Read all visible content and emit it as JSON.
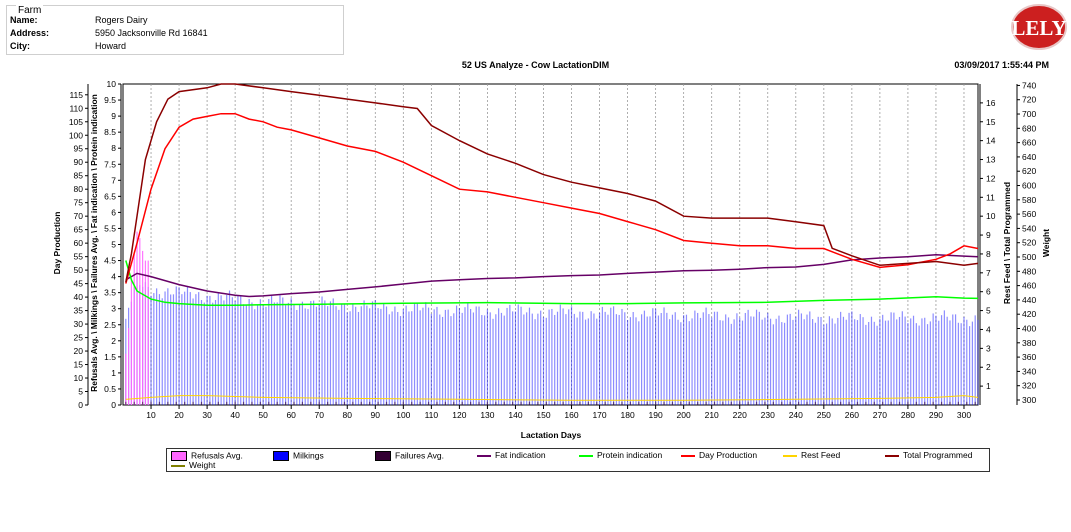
{
  "farm": {
    "legend": "Farm",
    "name_label": "Name:",
    "name": "Rogers Dairy",
    "address_label": "Address:",
    "address": "5950 Jacksonville Rd 16841",
    "city_label": "City:",
    "city": "Howard"
  },
  "logo": {
    "text": "LELY",
    "color": "#cc1f1f"
  },
  "report": {
    "title": "52 US Analyze - Cow LactationDIM",
    "timestamp": "03/09/2017 1:55:44 PM"
  },
  "chart_data": {
    "type": "line",
    "title": "52 US Analyze - Cow LactationDIM",
    "xlabel": "Lactation Days",
    "xlim": [
      0,
      305
    ],
    "x_ticks": [
      10,
      20,
      30,
      40,
      50,
      60,
      70,
      80,
      90,
      100,
      110,
      120,
      130,
      140,
      150,
      160,
      170,
      180,
      190,
      200,
      210,
      220,
      230,
      240,
      250,
      260,
      270,
      280,
      290,
      300
    ],
    "axes": {
      "day_production": {
        "label": "Day Production",
        "lim": [
          0,
          119
        ],
        "ticks": [
          0,
          5,
          10,
          15,
          20,
          25,
          30,
          35,
          40,
          45,
          50,
          55,
          60,
          65,
          70,
          75,
          80,
          85,
          90,
          95,
          100,
          105,
          110,
          115
        ]
      },
      "indicators": {
        "label": "Refusals Avg. \\ Milkings \\ Failures Avg. \\ Fat indication \\ Protein indication",
        "lim": [
          0,
          10
        ],
        "ticks": [
          "0",
          "0.5",
          "1",
          "1.5",
          "2",
          "2.5",
          "3",
          "3.5",
          "4",
          "4.5",
          "5",
          "5.5",
          "6",
          "6.5",
          "7",
          "7.5",
          "8",
          "8.5",
          "9",
          "9.5",
          "10"
        ]
      },
      "feed": {
        "label": "Rest Feed \\ Total Programmed",
        "lim": [
          0,
          17
        ],
        "ticks": [
          1,
          2,
          3,
          4,
          5,
          6,
          7,
          8,
          9,
          10,
          11,
          12,
          13,
          14,
          15,
          16
        ]
      },
      "weight": {
        "label": "Weight",
        "lim": [
          293,
          742
        ],
        "ticks": [
          300,
          320,
          340,
          360,
          380,
          400,
          420,
          440,
          460,
          480,
          500,
          520,
          540,
          560,
          580,
          600,
          620,
          640,
          660,
          680,
          700,
          720,
          740
        ]
      }
    },
    "series": [
      {
        "name": "Refusals Avg.",
        "kind": "bar",
        "axis": "indicators",
        "color": "#ff66ff",
        "points": [
          [
            1,
            1.6
          ],
          [
            2,
            2.4
          ],
          [
            3,
            3.9
          ],
          [
            4,
            4.7
          ],
          [
            5,
            5.4
          ],
          [
            6,
            5.2
          ],
          [
            7,
            4.8
          ],
          [
            8,
            4.5
          ],
          [
            9,
            4.5
          ]
        ]
      },
      {
        "name": "Milkings",
        "kind": "bar",
        "axis": "indicators",
        "color": "#0000ff",
        "points": [
          [
            1,
            2.5
          ],
          [
            2,
            3.0
          ],
          [
            5,
            3.8
          ],
          [
            10,
            3.6
          ],
          [
            20,
            3.5
          ],
          [
            30,
            3.4
          ],
          [
            40,
            3.3
          ],
          [
            50,
            3.2
          ],
          [
            60,
            3.2
          ],
          [
            80,
            3.1
          ],
          [
            100,
            3.0
          ],
          [
            120,
            2.95
          ],
          [
            150,
            2.9
          ],
          [
            180,
            2.85
          ],
          [
            200,
            2.8
          ],
          [
            230,
            2.75
          ],
          [
            260,
            2.7
          ],
          [
            280,
            2.7
          ],
          [
            305,
            2.7
          ]
        ]
      },
      {
        "name": "Failures Avg.",
        "kind": "bar",
        "axis": "indicators",
        "color": "#330033",
        "points": [
          [
            1,
            0.1
          ],
          [
            305,
            0.1
          ]
        ]
      },
      {
        "name": "Fat indication",
        "kind": "line",
        "axis": "indicators",
        "color": "#660066",
        "points": [
          [
            1,
            3.9
          ],
          [
            5,
            4.1
          ],
          [
            10,
            4.0
          ],
          [
            20,
            3.75
          ],
          [
            30,
            3.55
          ],
          [
            40,
            3.42
          ],
          [
            45,
            3.38
          ],
          [
            50,
            3.4
          ],
          [
            60,
            3.47
          ],
          [
            70,
            3.52
          ],
          [
            80,
            3.6
          ],
          [
            90,
            3.68
          ],
          [
            100,
            3.77
          ],
          [
            110,
            3.86
          ],
          [
            120,
            3.9
          ],
          [
            130,
            3.94
          ],
          [
            140,
            3.96
          ],
          [
            150,
            4.0
          ],
          [
            160,
            4.03
          ],
          [
            170,
            4.05
          ],
          [
            180,
            4.1
          ],
          [
            190,
            4.14
          ],
          [
            200,
            4.18
          ],
          [
            210,
            4.2
          ],
          [
            220,
            4.23
          ],
          [
            230,
            4.28
          ],
          [
            240,
            4.3
          ],
          [
            250,
            4.38
          ],
          [
            260,
            4.52
          ],
          [
            270,
            4.58
          ],
          [
            280,
            4.62
          ],
          [
            290,
            4.68
          ],
          [
            300,
            4.64
          ],
          [
            305,
            4.62
          ]
        ]
      },
      {
        "name": "Protein indication",
        "kind": "line",
        "axis": "indicators",
        "color": "#00ff00",
        "points": [
          [
            1,
            4.5
          ],
          [
            3,
            3.9
          ],
          [
            5,
            3.55
          ],
          [
            10,
            3.3
          ],
          [
            15,
            3.2
          ],
          [
            20,
            3.16
          ],
          [
            30,
            3.11
          ],
          [
            40,
            3.11
          ],
          [
            50,
            3.12
          ],
          [
            70,
            3.14
          ],
          [
            100,
            3.17
          ],
          [
            130,
            3.19
          ],
          [
            160,
            3.16
          ],
          [
            180,
            3.16
          ],
          [
            200,
            3.18
          ],
          [
            230,
            3.2
          ],
          [
            250,
            3.26
          ],
          [
            270,
            3.3
          ],
          [
            290,
            3.37
          ],
          [
            300,
            3.33
          ],
          [
            305,
            3.32
          ]
        ]
      },
      {
        "name": "Day Production",
        "kind": "line",
        "axis": "day_production",
        "color": "#ff0000",
        "points": [
          [
            1,
            45
          ],
          [
            5,
            60
          ],
          [
            10,
            80
          ],
          [
            15,
            95
          ],
          [
            20,
            103
          ],
          [
            25,
            106
          ],
          [
            30,
            107
          ],
          [
            35,
            108
          ],
          [
            40,
            108
          ],
          [
            45,
            106
          ],
          [
            50,
            105
          ],
          [
            55,
            103
          ],
          [
            60,
            102
          ],
          [
            70,
            99
          ],
          [
            80,
            96
          ],
          [
            90,
            94
          ],
          [
            100,
            90
          ],
          [
            110,
            85
          ],
          [
            120,
            80
          ],
          [
            130,
            79
          ],
          [
            140,
            77
          ],
          [
            150,
            75
          ],
          [
            160,
            73
          ],
          [
            170,
            71
          ],
          [
            180,
            68
          ],
          [
            190,
            65
          ],
          [
            200,
            61
          ],
          [
            210,
            60
          ],
          [
            220,
            59
          ],
          [
            230,
            59
          ],
          [
            240,
            58
          ],
          [
            250,
            58
          ],
          [
            255,
            56
          ],
          [
            260,
            54
          ],
          [
            270,
            51
          ],
          [
            280,
            52
          ],
          [
            290,
            54
          ],
          [
            295,
            56
          ],
          [
            300,
            59
          ],
          [
            305,
            58
          ]
        ]
      },
      {
        "name": "Rest Feed",
        "kind": "line",
        "axis": "feed",
        "color": "#ffd400",
        "points": [
          [
            1,
            0.3
          ],
          [
            10,
            0.4
          ],
          [
            20,
            0.5
          ],
          [
            30,
            0.5
          ],
          [
            50,
            0.4
          ],
          [
            80,
            0.35
          ],
          [
            120,
            0.3
          ],
          [
            160,
            0.25
          ],
          [
            200,
            0.25
          ],
          [
            240,
            0.3
          ],
          [
            270,
            0.35
          ],
          [
            290,
            0.4
          ],
          [
            300,
            0.5
          ],
          [
            305,
            0.4
          ]
        ]
      },
      {
        "name": "Total Programmed",
        "kind": "line",
        "axis": "feed",
        "color": "#8b0000",
        "points": [
          [
            1,
            6.5
          ],
          [
            3,
            8
          ],
          [
            5,
            10
          ],
          [
            8,
            13
          ],
          [
            12,
            15
          ],
          [
            16,
            16.2
          ],
          [
            20,
            16.6
          ],
          [
            30,
            16.8
          ],
          [
            35,
            17
          ],
          [
            40,
            17
          ],
          [
            50,
            16.8
          ],
          [
            60,
            16.6
          ],
          [
            70,
            16.4
          ],
          [
            80,
            16.2
          ],
          [
            90,
            16.0
          ],
          [
            100,
            15.8
          ],
          [
            105,
            15.7
          ],
          [
            110,
            14.8
          ],
          [
            120,
            14.0
          ],
          [
            130,
            13.3
          ],
          [
            140,
            12.8
          ],
          [
            150,
            12.2
          ],
          [
            160,
            11.8
          ],
          [
            170,
            11.5
          ],
          [
            180,
            11.2
          ],
          [
            190,
            10.8
          ],
          [
            200,
            10.0
          ],
          [
            210,
            9.9
          ],
          [
            220,
            9.9
          ],
          [
            230,
            9.9
          ],
          [
            240,
            9.7
          ],
          [
            250,
            9.5
          ],
          [
            253,
            8.3
          ],
          [
            260,
            7.9
          ],
          [
            270,
            7.4
          ],
          [
            280,
            7.5
          ],
          [
            290,
            7.6
          ],
          [
            300,
            7.4
          ],
          [
            305,
            7.5
          ]
        ]
      },
      {
        "name": "Weight",
        "kind": "line",
        "axis": "weight",
        "color": "#808000",
        "points": []
      }
    ],
    "legend": [
      "Refusals Avg.",
      "Milkings",
      "Failures Avg.",
      "Fat indication",
      "Protein indication",
      "Day Production",
      "Rest Feed",
      "Total Programmed",
      "Weight"
    ],
    "legend_position": "bottom",
    "grid": "vertical dashed"
  }
}
